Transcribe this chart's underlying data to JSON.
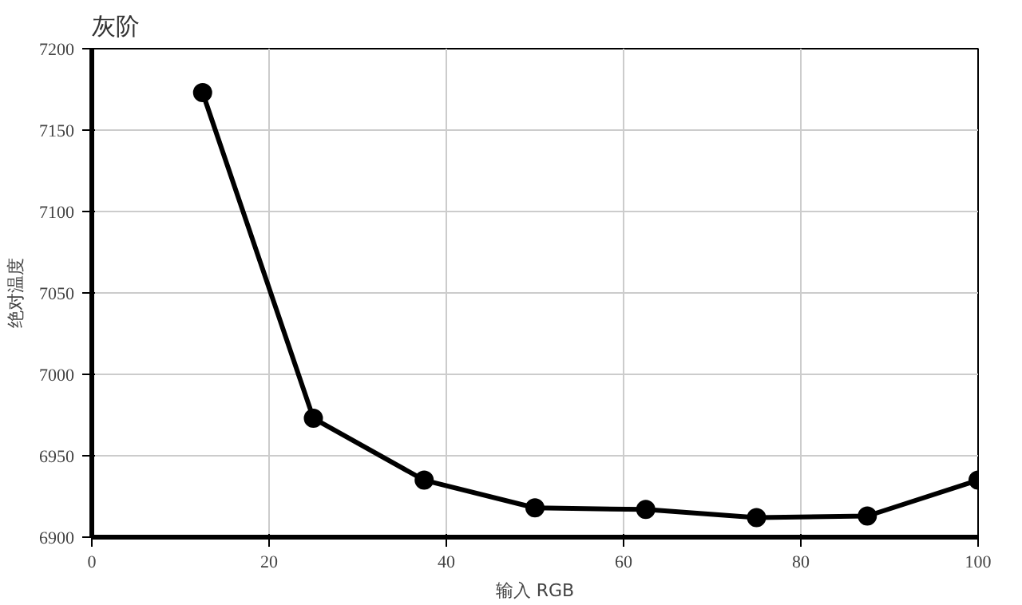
{
  "chart_data": {
    "type": "line",
    "title": "灰阶",
    "xlabel": "输入 RGB",
    "ylabel": "绝对温度",
    "x": [
      12.5,
      25,
      37.5,
      50,
      62.5,
      75,
      87.5,
      100
    ],
    "series": [
      {
        "color": "#000000",
        "values": [
          7173,
          6973,
          6935,
          6918,
          6917,
          6912,
          6913,
          6935
        ]
      }
    ],
    "xlim": [
      0,
      100
    ],
    "xticks": [
      0,
      20,
      40,
      60,
      80,
      100
    ],
    "ylim": [
      6900,
      7200
    ],
    "yticks": [
      6900,
      6950,
      7000,
      7050,
      7100,
      7150,
      7200
    ],
    "grid": true,
    "marker": "circle",
    "line_style": "solid"
  }
}
